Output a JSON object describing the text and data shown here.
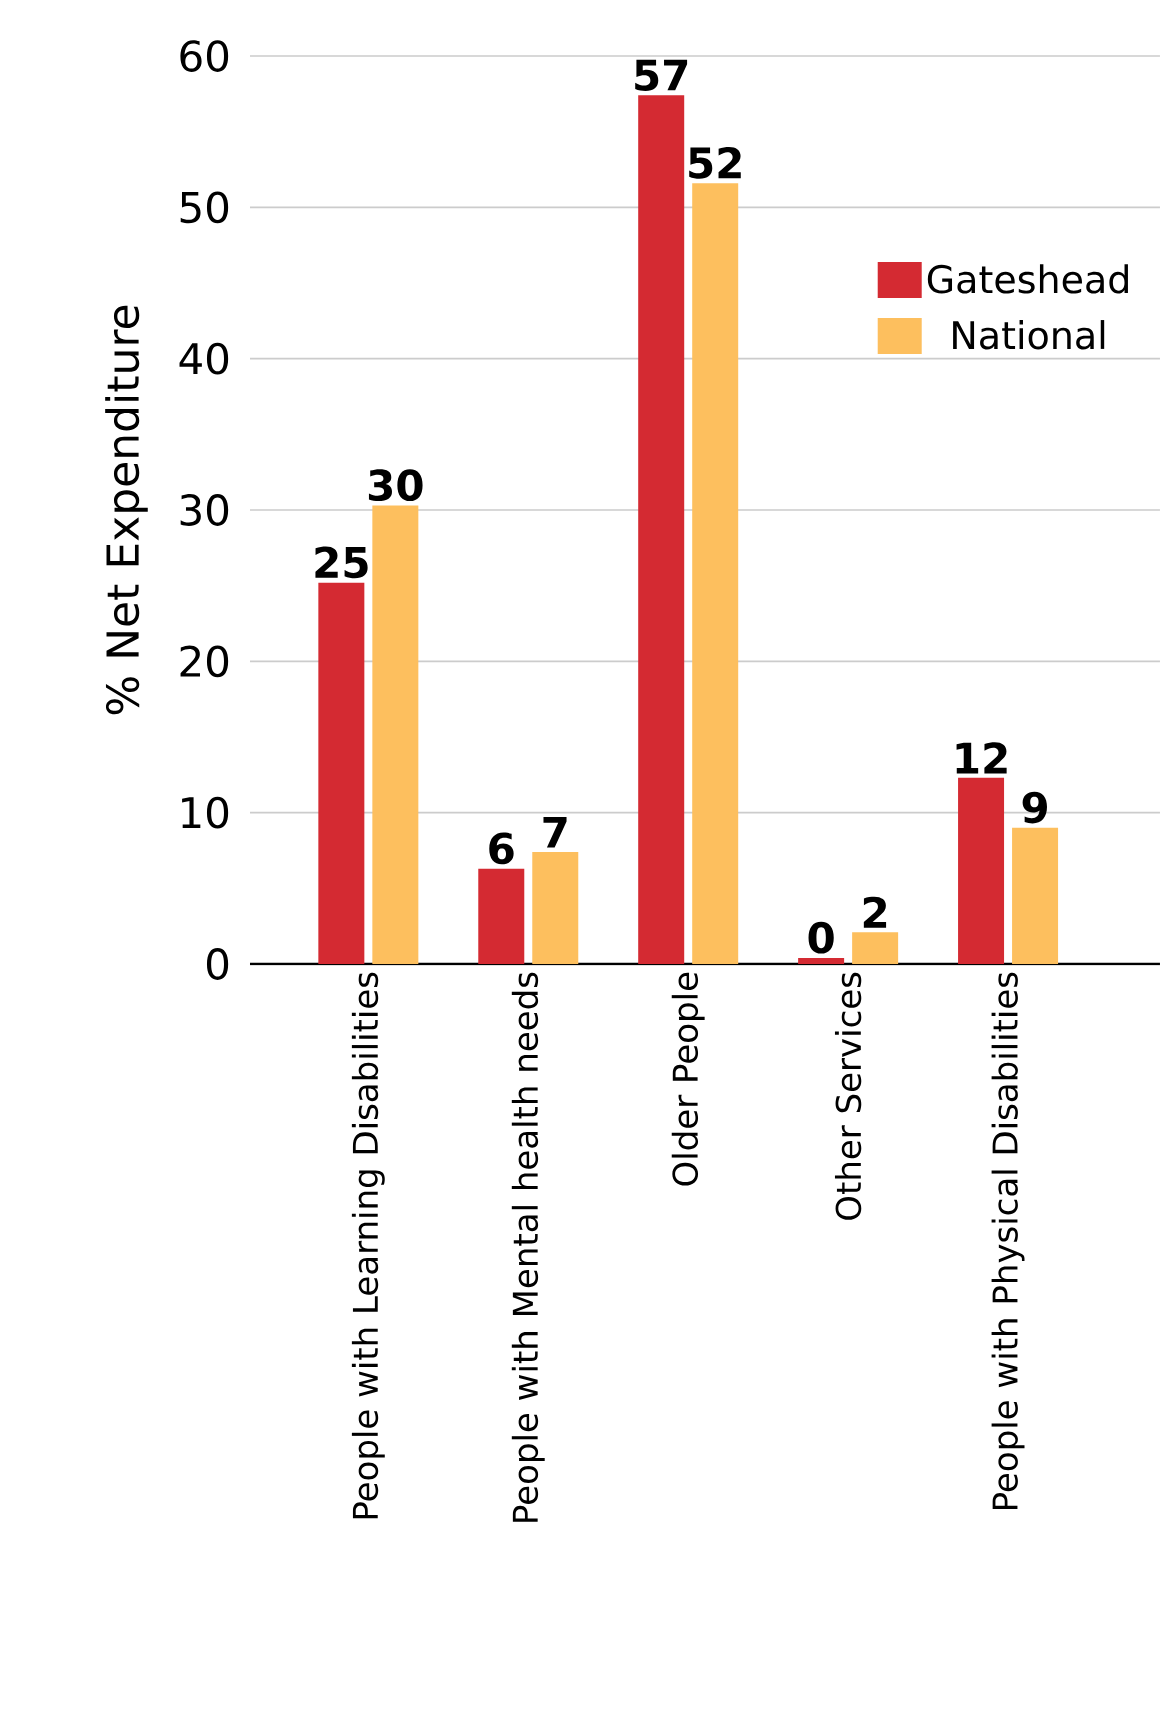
{
  "chart_data": {
    "type": "bar",
    "ylabel": "% Net Expenditure",
    "categories": [
      "People with Learning Disabilities",
      "People with Mental health needs",
      "Older People",
      "Other Services",
      "People with Physical Disabilities"
    ],
    "series": [
      {
        "name": "Gateshead",
        "color": "#d42a32",
        "values": [
          25.2,
          6.3,
          57.4,
          0.4,
          12.3
        ],
        "value_labels": [
          "25",
          "6",
          "57",
          "0",
          "12"
        ]
      },
      {
        "name": "National",
        "color": "#fdbf5e",
        "values": [
          30.3,
          7.4,
          51.6,
          2.1,
          9.0
        ],
        "value_labels": [
          "30",
          "7",
          "52",
          "2",
          "9"
        ]
      }
    ],
    "ylim": [
      0,
      60
    ],
    "yticks": [
      0,
      10,
      20,
      30,
      40,
      50,
      60
    ],
    "grid": "y",
    "legend": "top right"
  }
}
